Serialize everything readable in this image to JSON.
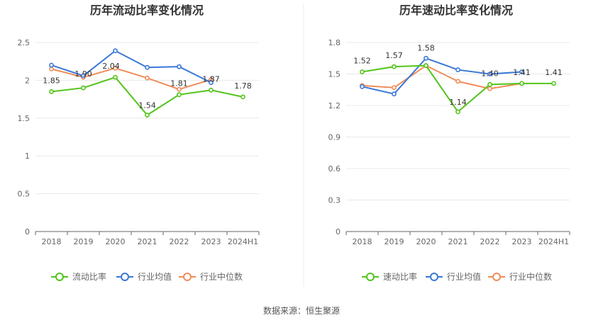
{
  "source": "数据来源：恒生聚源",
  "colors": {
    "company": "#52c41a",
    "industry_avg": "#3a78d8",
    "industry_median": "#f08c5a",
    "grid": "#e8e8e8",
    "axis": "#666666",
    "divider": "#eeeeee"
  },
  "chart_data": [
    {
      "type": "line",
      "title": "历年流动比率变化情况",
      "categories": [
        "2018",
        "2019",
        "2020",
        "2021",
        "2022",
        "2023",
        "2024H1"
      ],
      "ylim": [
        0,
        2.5
      ],
      "yticks": [
        0,
        0.5,
        1,
        1.5,
        2,
        2.5
      ],
      "ytick_labels": [
        "0",
        "0.5",
        "1",
        "1.5",
        "2",
        "2.5"
      ],
      "grid": true,
      "legend_position": "bottom",
      "series": [
        {
          "name": "流动比率",
          "color_key": "company",
          "values": [
            1.85,
            1.9,
            2.04,
            1.54,
            1.81,
            1.87,
            1.78
          ],
          "labels": [
            "1.85",
            "1.90",
            "2.04",
            "1.54",
            "1.81",
            "1.87",
            "1.78"
          ]
        },
        {
          "name": "行业均值",
          "color_key": "industry_avg",
          "values": [
            2.2,
            2.06,
            2.39,
            2.17,
            2.18,
            1.97,
            null
          ]
        },
        {
          "name": "行业中位数",
          "color_key": "industry_median",
          "values": [
            2.15,
            2.04,
            2.16,
            2.03,
            1.88,
            2.01,
            null
          ]
        }
      ]
    },
    {
      "type": "line",
      "title": "历年速动比率变化情况",
      "categories": [
        "2018",
        "2019",
        "2020",
        "2021",
        "2022",
        "2023",
        "2024H1"
      ],
      "ylim": [
        0,
        1.8
      ],
      "yticks": [
        0,
        0.3,
        0.6,
        0.9,
        1.2,
        1.5,
        1.8
      ],
      "ytick_labels": [
        "0",
        "0.3",
        "0.6",
        "0.9",
        "1.2",
        "1.5",
        "1.8"
      ],
      "grid": true,
      "legend_position": "bottom",
      "series": [
        {
          "name": "速动比率",
          "color_key": "company",
          "values": [
            1.52,
            1.57,
            1.58,
            1.14,
            1.4,
            1.41,
            1.41
          ],
          "labels": [
            "1.52",
            "1.57",
            "1.58",
            "1.14",
            "1.40",
            "1.41",
            "1.41"
          ]
        },
        {
          "name": "行业均值",
          "color_key": "industry_avg",
          "values": [
            1.38,
            1.31,
            1.65,
            1.54,
            1.5,
            1.52,
            null
          ]
        },
        {
          "name": "行业中位数",
          "color_key": "industry_median",
          "values": [
            1.39,
            1.37,
            1.58,
            1.43,
            1.36,
            1.41,
            null
          ]
        }
      ]
    }
  ]
}
